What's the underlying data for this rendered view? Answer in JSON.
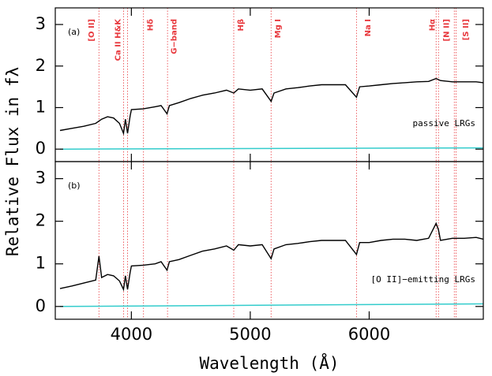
{
  "chart_data": [
    {
      "type": "line",
      "panel_label": "(a)",
      "annotation": "passive LRGs",
      "ylabel": "Relative Flux in fλ",
      "xlim": [
        3360,
        6960
      ],
      "ylim": [
        -0.3,
        3.4
      ],
      "xticks": [
        4000,
        5000,
        6000
      ],
      "yticks": [
        0,
        1,
        2,
        3
      ],
      "line_color": "#e8383d",
      "lines": [
        3727,
        3934,
        3968,
        4102,
        4304,
        4861,
        5175,
        5893,
        6563,
        6583,
        6716,
        6731
      ],
      "line_labels": [
        {
          "x": 3664,
          "text": "[O II]"
        },
        {
          "x": 3887,
          "text": "Ca II H&K"
        },
        {
          "x": 4160,
          "text": "Hδ"
        },
        {
          "x": 4360,
          "text": "G−band"
        },
        {
          "x": 4920,
          "text": "Hβ"
        },
        {
          "x": 5233,
          "text": "Mg I"
        },
        {
          "x": 5990,
          "text": "Na I"
        },
        {
          "x": 6530,
          "text": "Hα"
        },
        {
          "x": 6650,
          "text": "[N II]"
        },
        {
          "x": 6815,
          "text": "[S II]"
        }
      ],
      "x": [
        3400,
        3500,
        3600,
        3700,
        3750,
        3800,
        3850,
        3900,
        3934,
        3950,
        3968,
        3990,
        4000,
        4100,
        4200,
        4250,
        4300,
        4320,
        4400,
        4500,
        4600,
        4700,
        4800,
        4861,
        4900,
        5000,
        5100,
        5175,
        5200,
        5300,
        5400,
        5500,
        5600,
        5700,
        5800,
        5893,
        5920,
        6000,
        6100,
        6200,
        6300,
        6400,
        6500,
        6563,
        6600,
        6700,
        6800,
        6900,
        6960
      ],
      "series": [
        {
          "color": "#000000",
          "values": [
            0.45,
            0.5,
            0.55,
            0.62,
            0.72,
            0.78,
            0.75,
            0.62,
            0.38,
            0.72,
            0.38,
            0.8,
            0.95,
            0.97,
            1.02,
            1.05,
            0.85,
            1.05,
            1.12,
            1.22,
            1.3,
            1.35,
            1.42,
            1.35,
            1.45,
            1.42,
            1.45,
            1.15,
            1.35,
            1.45,
            1.48,
            1.52,
            1.55,
            1.55,
            1.55,
            1.25,
            1.5,
            1.52,
            1.55,
            1.58,
            1.6,
            1.62,
            1.63,
            1.7,
            1.65,
            1.62,
            1.62,
            1.62,
            1.6
          ]
        },
        {
          "color": "#33cccc",
          "x": [
            3400,
            6960
          ],
          "values": [
            0.0,
            0.03
          ]
        }
      ]
    },
    {
      "type": "line",
      "panel_label": "(b)",
      "annotation": "[O II]−emitting LRGs",
      "xlabel": "Wavelength (Å)",
      "xlim": [
        3360,
        6960
      ],
      "ylim": [
        -0.3,
        3.4
      ],
      "xticks": [
        4000,
        5000,
        6000
      ],
      "yticks": [
        0,
        1,
        2,
        3
      ],
      "line_color": "#e8383d",
      "lines": [
        3727,
        3934,
        3968,
        4102,
        4304,
        4861,
        5175,
        5893,
        6563,
        6583,
        6716,
        6731
      ],
      "x": [
        3400,
        3500,
        3600,
        3700,
        3727,
        3750,
        3800,
        3850,
        3900,
        3934,
        3950,
        3968,
        3990,
        4000,
        4100,
        4200,
        4250,
        4300,
        4320,
        4400,
        4500,
        4600,
        4700,
        4800,
        4861,
        4900,
        5000,
        5100,
        5175,
        5200,
        5300,
        5400,
        5500,
        5600,
        5700,
        5800,
        5893,
        5920,
        6000,
        6100,
        6200,
        6300,
        6400,
        6500,
        6563,
        6583,
        6600,
        6700,
        6800,
        6900,
        6960
      ],
      "series": [
        {
          "color": "#000000",
          "values": [
            0.42,
            0.48,
            0.55,
            0.62,
            1.18,
            0.68,
            0.75,
            0.72,
            0.6,
            0.4,
            0.72,
            0.4,
            0.8,
            0.95,
            0.97,
            1.0,
            1.05,
            0.85,
            1.05,
            1.1,
            1.2,
            1.3,
            1.35,
            1.42,
            1.32,
            1.45,
            1.42,
            1.45,
            1.12,
            1.35,
            1.45,
            1.48,
            1.52,
            1.55,
            1.55,
            1.55,
            1.22,
            1.5,
            1.5,
            1.55,
            1.58,
            1.58,
            1.55,
            1.6,
            1.95,
            1.8,
            1.55,
            1.6,
            1.6,
            1.62,
            1.58
          ]
        },
        {
          "color": "#33cccc",
          "x": [
            3400,
            6960
          ],
          "values": [
            0.0,
            0.06
          ]
        }
      ]
    }
  ]
}
